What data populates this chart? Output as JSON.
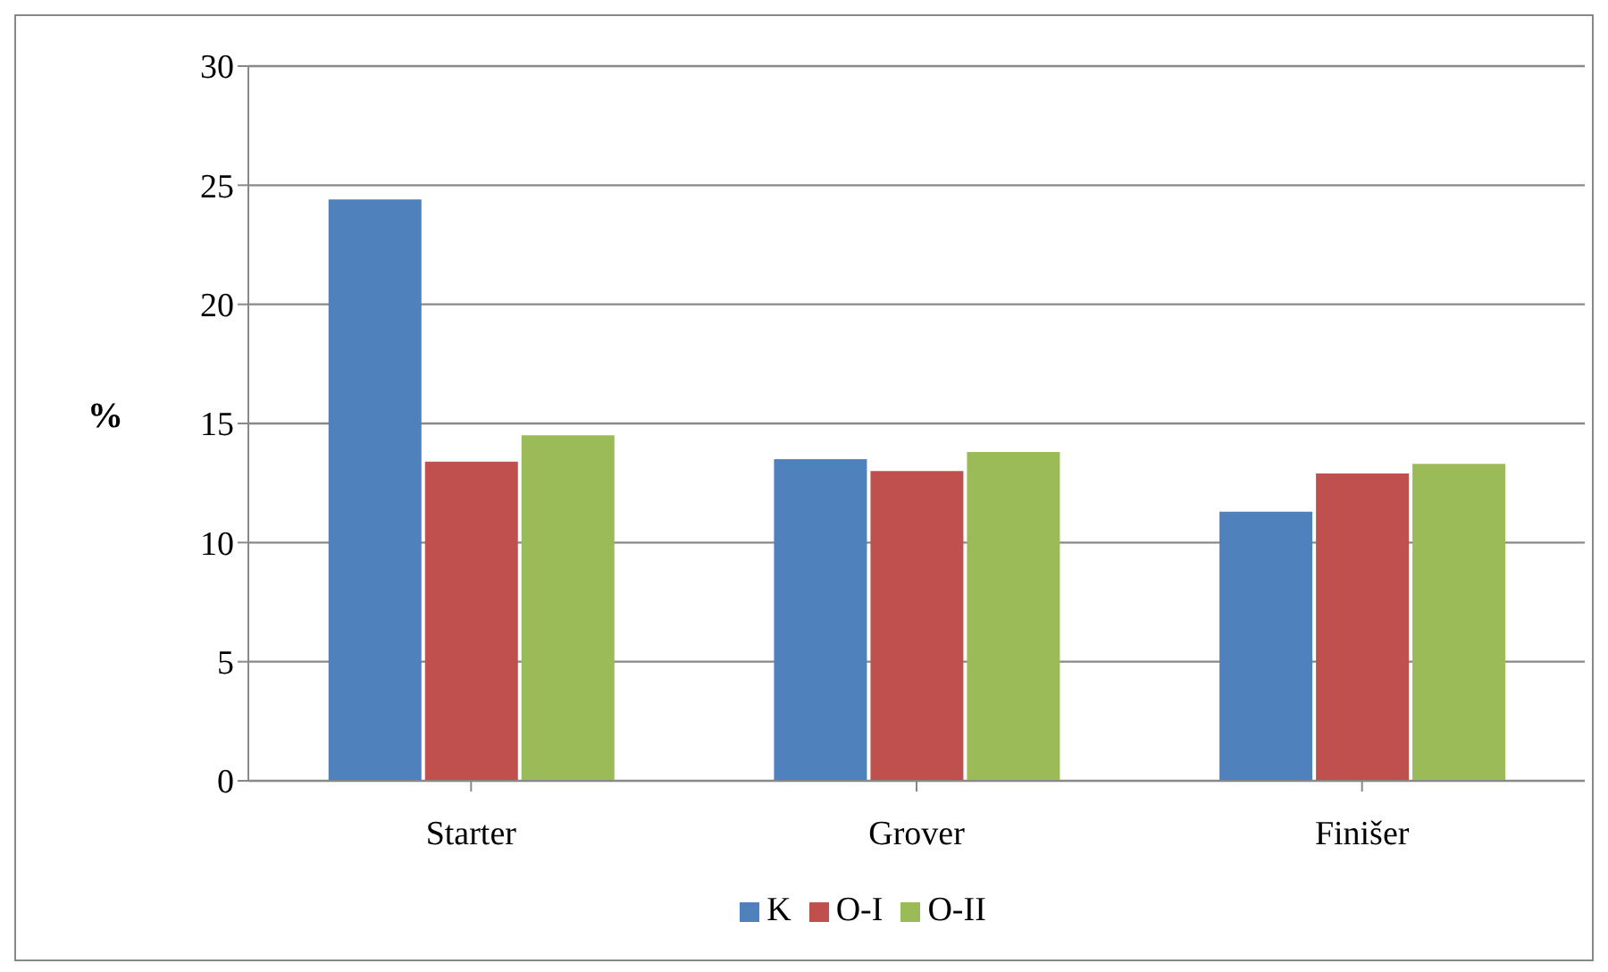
{
  "chart_data": {
    "type": "bar",
    "ylabel": "%",
    "categories": [
      "Starter",
      "Grover",
      "Finišer"
    ],
    "series": [
      {
        "name": "K",
        "color": "#4f81bd",
        "values": [
          24.4,
          13.5,
          11.3
        ]
      },
      {
        "name": "O-I",
        "color": "#c0504d",
        "values": [
          13.4,
          13.0,
          12.9
        ]
      },
      {
        "name": "O-II",
        "color": "#9bbb59",
        "values": [
          14.5,
          13.8,
          13.3
        ]
      }
    ],
    "ylim": [
      0,
      30
    ],
    "yticks": [
      0,
      5,
      10,
      15,
      20,
      25,
      30
    ],
    "grid": "y",
    "legend": "bottom"
  }
}
